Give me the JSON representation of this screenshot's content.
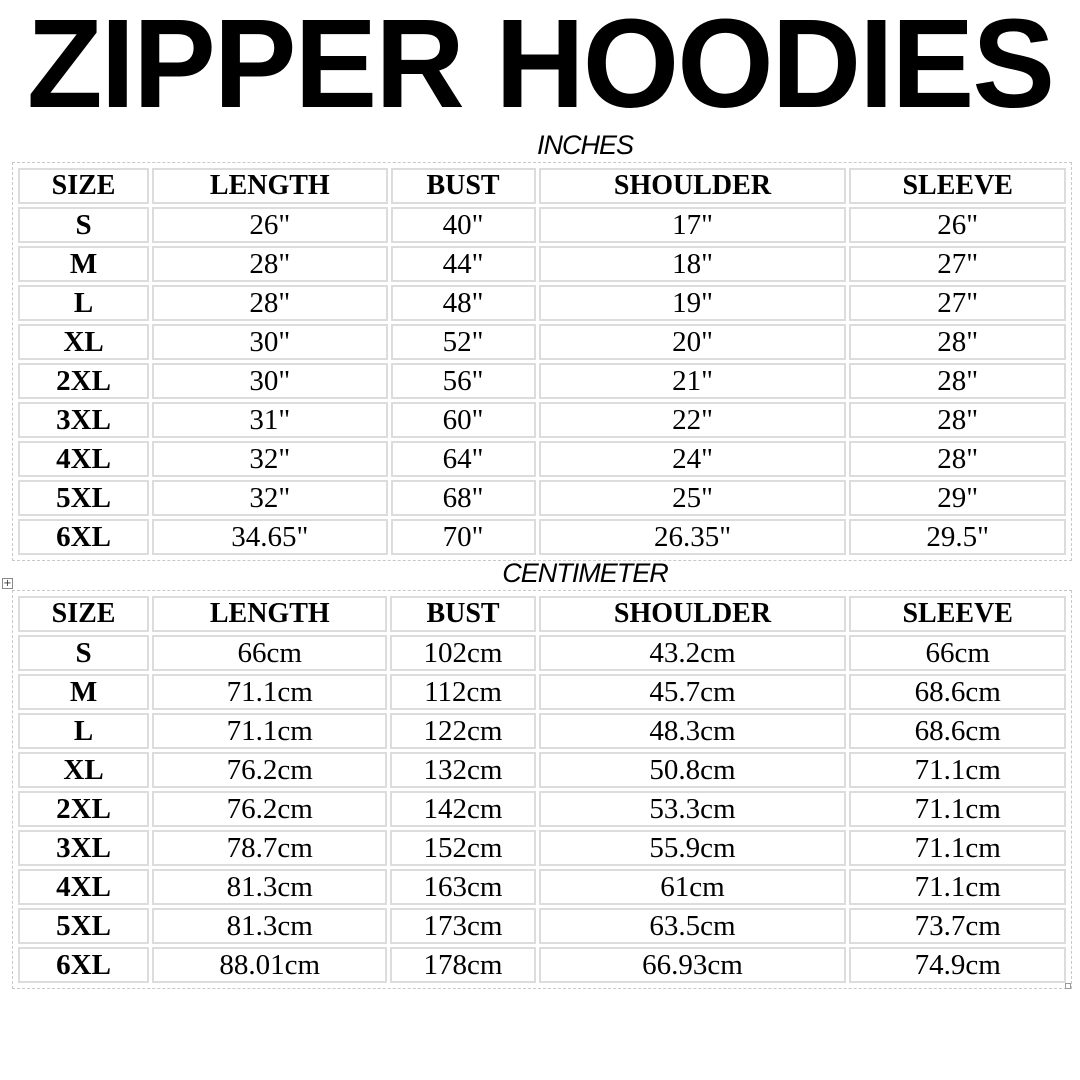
{
  "title": "ZIPPER HOODIES",
  "inches": {
    "label": "INCHES",
    "headers": [
      "SIZE",
      "LENGTH",
      "BUST",
      "SHOULDER",
      "SLEEVE"
    ],
    "rows": [
      [
        "S",
        "26\"",
        "40\"",
        "17\"",
        "26\""
      ],
      [
        "M",
        "28\"",
        "44\"",
        "18\"",
        "27\""
      ],
      [
        "L",
        "28\"",
        "48\"",
        "19\"",
        "27\""
      ],
      [
        "XL",
        "30\"",
        "52\"",
        "20\"",
        "28\""
      ],
      [
        "2XL",
        "30\"",
        "56\"",
        "21\"",
        "28\""
      ],
      [
        "3XL",
        "31\"",
        "60\"",
        "22\"",
        "28\""
      ],
      [
        "4XL",
        "32\"",
        "64\"",
        "24\"",
        "28\""
      ],
      [
        "5XL",
        "32\"",
        "68\"",
        "25\"",
        "29\""
      ],
      [
        "6XL",
        "34.65\"",
        "70\"",
        "26.35\"",
        "29.5\""
      ]
    ]
  },
  "centimeter": {
    "label": "CENTIMETER",
    "headers": [
      "SIZE",
      "LENGTH",
      "BUST",
      "SHOULDER",
      "SLEEVE"
    ],
    "rows": [
      [
        "S",
        "66cm",
        "102cm",
        "43.2cm",
        "66cm"
      ],
      [
        "M",
        "71.1cm",
        "112cm",
        "45.7cm",
        "68.6cm"
      ],
      [
        "L",
        "71.1cm",
        "122cm",
        "48.3cm",
        "68.6cm"
      ],
      [
        "XL",
        "76.2cm",
        "132cm",
        "50.8cm",
        "71.1cm"
      ],
      [
        "2XL",
        "76.2cm",
        "142cm",
        "53.3cm",
        "71.1cm"
      ],
      [
        "3XL",
        "78.7cm",
        "152cm",
        "55.9cm",
        "71.1cm"
      ],
      [
        "4XL",
        "81.3cm",
        "163cm",
        "61cm",
        "71.1cm"
      ],
      [
        "5XL",
        "81.3cm",
        "173cm",
        "63.5cm",
        "73.7cm"
      ],
      [
        "6XL",
        "88.01cm",
        "178cm",
        "66.93cm",
        "74.9cm"
      ]
    ]
  }
}
